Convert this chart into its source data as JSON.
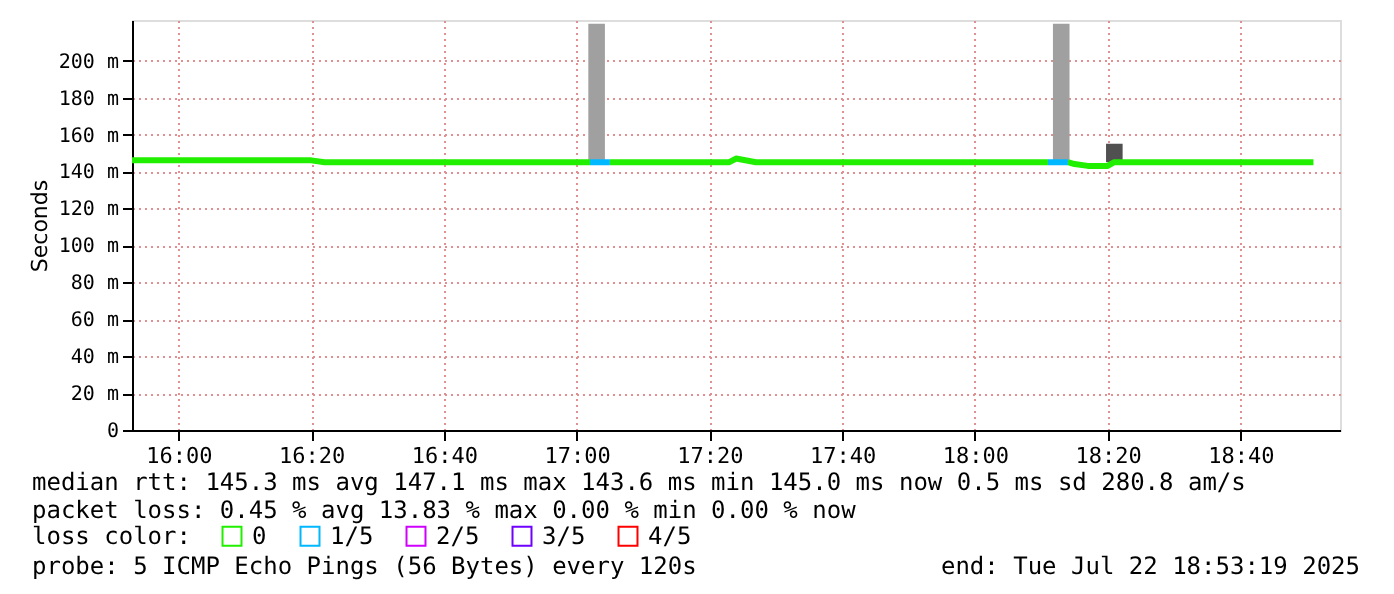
{
  "chart_data": {
    "type": "line",
    "ylabel": "Seconds",
    "legend_title": "loss color:",
    "legend": "bottom",
    "grid": true,
    "xlim": [
      "2025-07-22T15:53",
      "2025-07-22T18:55"
    ],
    "xticks": [
      {
        "value": "2025-07-22T16:00",
        "label": "16:00"
      },
      {
        "value": "2025-07-22T16:20",
        "label": "16:20"
      },
      {
        "value": "2025-07-22T16:40",
        "label": "16:40"
      },
      {
        "value": "2025-07-22T17:00",
        "label": "17:00"
      },
      {
        "value": "2025-07-22T17:20",
        "label": "17:20"
      },
      {
        "value": "2025-07-22T17:40",
        "label": "17:40"
      },
      {
        "value": "2025-07-22T18:00",
        "label": "18:00"
      },
      {
        "value": "2025-07-22T18:20",
        "label": "18:20"
      },
      {
        "value": "2025-07-22T18:40",
        "label": "18:40"
      }
    ],
    "ylim": [
      0,
      222
    ],
    "yticks": [
      0,
      {
        "value": 20,
        "label": "20 m"
      },
      {
        "value": 40,
        "label": "40 m"
      },
      {
        "value": 60,
        "label": "60 m"
      },
      {
        "value": 80,
        "label": "80 m"
      },
      {
        "value": 100,
        "label": "100 m"
      },
      {
        "value": 120,
        "label": "120 m"
      },
      {
        "value": 140,
        "label": "140 m"
      },
      {
        "value": 160,
        "label": "160 m"
      },
      {
        "value": 180,
        "label": "180 m"
      },
      {
        "value": 200,
        "label": "200 m"
      }
    ],
    "series": [
      {
        "type": "bar",
        "color": "#a0a0a0",
        "colors": [
          "#a0a0a0",
          "#a0a0a0",
          "#505050"
        ],
        "x": [
          "2025-07-22T17:03",
          "2025-07-22T18:13",
          "2025-07-22T18:21"
        ],
        "values": [
          75,
          75,
          10
        ],
        "base": [
          145,
          145,
          145
        ]
      },
      {
        "name": "0",
        "color": "#20f000",
        "x": [
          "2025-07-22T15:53",
          "2025-07-22T16:20",
          "2025-07-22T16:22",
          "2025-07-22T17:02",
          "2025-07-22T17:03",
          "2025-07-22T17:05",
          "2025-07-22T17:23",
          "2025-07-22T17:24",
          "2025-07-22T17:27",
          "2025-07-22T18:11",
          "2025-07-22T18:12",
          "2025-07-22T18:14",
          "2025-07-22T18:15",
          "2025-07-22T18:17",
          "2025-07-22T18:20",
          "2025-07-22T18:21",
          "2025-07-22T18:51"
        ],
        "values": [
          146,
          146,
          145,
          145,
          null,
          145,
          145,
          147,
          145,
          145,
          null,
          145,
          144,
          143,
          143,
          145,
          145
        ]
      },
      {
        "name": "1/5",
        "color": "#00b8ff",
        "x": [
          "2025-07-22T17:02",
          "2025-07-22T17:05",
          "2025-07-22T17:30",
          "2025-07-22T18:11",
          "2025-07-22T18:14"
        ],
        "values": [
          145,
          145,
          null,
          145,
          145
        ]
      },
      {
        "name": "2/5",
        "color": "#d000ff"
      },
      {
        "name": "3/5",
        "color": "#7000ff"
      },
      {
        "name": "4/5",
        "color": "#ff0000"
      }
    ],
    "annotations": [
      "median rtt:  145.3 ms avg  147.1 ms max  143.6 ms min  145.0 ms now  0.5 ms sd  280.8   am/s",
      "packet loss: 0.45 % avg  13.83 % max  0.00 % min  0.00 % now",
      "probe:       5 ICMP Echo Pings (56 Bytes) every 120s",
      "end: Tue Jul 22 18:53:19 2025"
    ]
  }
}
